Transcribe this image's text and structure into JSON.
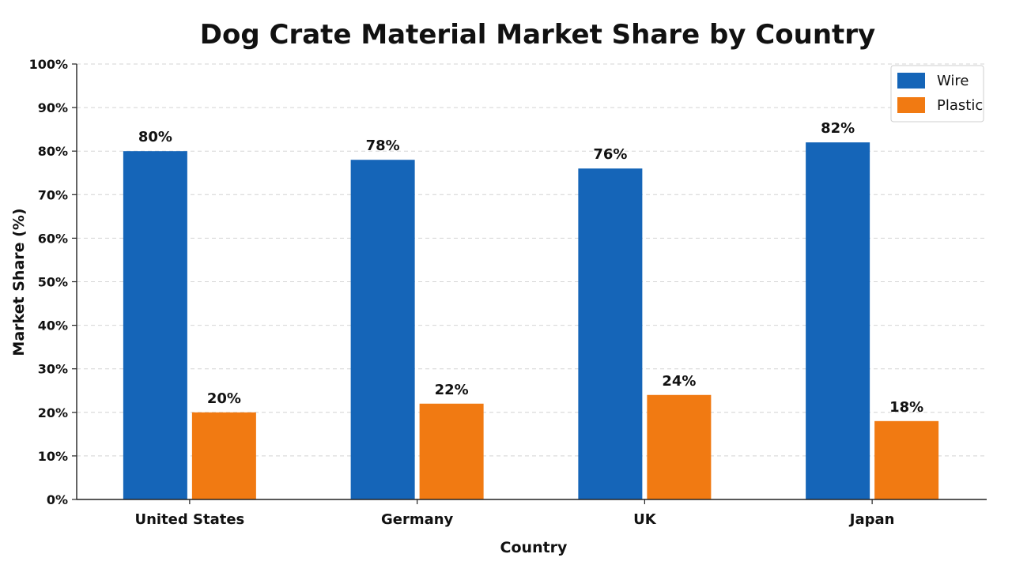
{
  "chart_data": {
    "type": "bar",
    "title": "Dog Crate Material Market Share by Country",
    "xlabel": "Country",
    "ylabel": "Market Share (%)",
    "categories": [
      "United States",
      "Germany",
      "UK",
      "Japan"
    ],
    "series": [
      {
        "name": "Wire",
        "values": [
          80,
          78,
          76,
          82
        ],
        "labels": [
          "80%",
          "78%",
          "76%",
          "82%"
        ],
        "color": "#1565b8"
      },
      {
        "name": "Plastic",
        "values": [
          20,
          22,
          24,
          18
        ],
        "labels": [
          "20%",
          "22%",
          "24%",
          "18%"
        ],
        "color": "#f17a12"
      }
    ],
    "ylim": [
      0,
      100
    ],
    "yticks": [
      0,
      10,
      20,
      30,
      40,
      50,
      60,
      70,
      80,
      90,
      100
    ],
    "ytick_labels": [
      "0%",
      "10%",
      "20%",
      "30%",
      "40%",
      "50%",
      "60%",
      "70%",
      "80%",
      "90%",
      "100%"
    ],
    "grid": true,
    "legend_position": "top-right"
  }
}
